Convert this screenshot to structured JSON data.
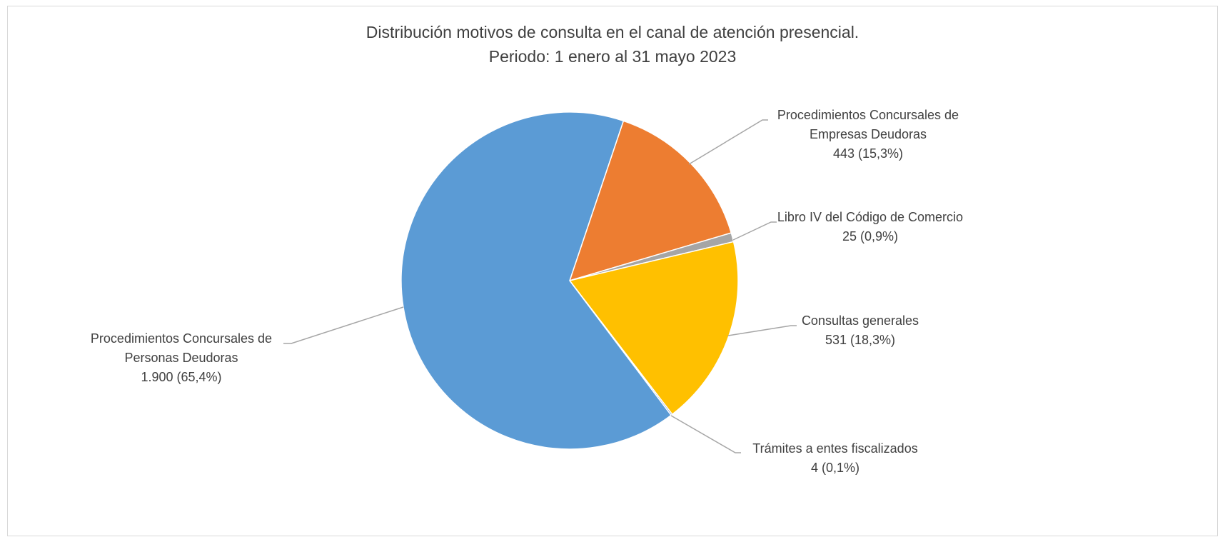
{
  "chart_data": {
    "type": "pie",
    "title": "Distribución motivos de consulta en el canal de atención presencial.",
    "subtitle": "Periodo: 1 enero al 31 mayo 2023",
    "categories": [
      "Procedimientos Concursales de Empresas Deudoras",
      "Libro IV del Código de Comercio",
      "Consultas generales",
      "Trámites a entes fiscalizados",
      "Procedimientos Concursales de Personas Deudoras"
    ],
    "values": [
      443,
      25,
      531,
      4,
      1900
    ],
    "value_labels": [
      "443 (15,3%)",
      "25 (0,9%)",
      "531 (18,3%)",
      "4 (0,1%)",
      "1.900 (65,4%)"
    ],
    "colors": [
      "#ed7d31",
      "#a5a5a5",
      "#ffc000",
      "#4472c4",
      "#5b9bd5"
    ]
  }
}
